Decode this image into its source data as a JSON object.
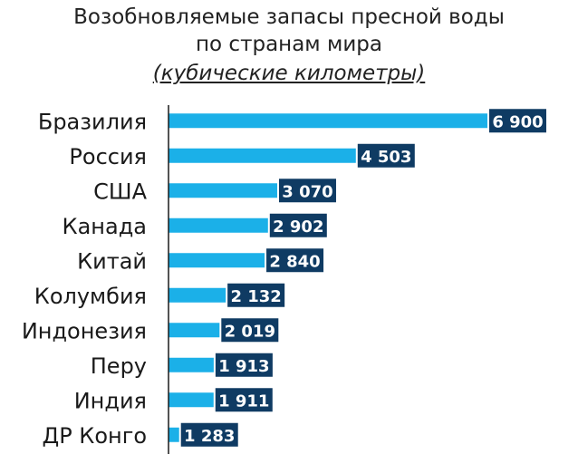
{
  "header": {
    "title_line1": "Возобновляемые запасы пресной воды",
    "title_line2": "по странам мира",
    "subtitle": "(кубические километры)"
  },
  "colors": {
    "bar": "#1bb0e8",
    "value_box": "#0f3b63",
    "axis": "#1a1a1a"
  },
  "chart_data": {
    "type": "bar",
    "orientation": "horizontal",
    "title": "Возобновляемые запасы пресной воды по странам мира",
    "subtitle": "(кубические километры)",
    "categories": [
      "Бразилия",
      "Россия",
      "США",
      "Канада",
      "Китай",
      "Колумбия",
      "Индонезия",
      "Перу",
      "Индия",
      "ДР Конго"
    ],
    "values": [
      6900,
      4503,
      3070,
      2902,
      2840,
      2132,
      2019,
      1913,
      1911,
      1283
    ],
    "value_labels": [
      "6 900",
      "4 503",
      "3 070",
      "2 902",
      "2 840",
      "2 132",
      "2 019",
      "1 913",
      "1 911",
      "1 283"
    ],
    "xlim": [
      0,
      6900
    ],
    "grid": false,
    "legend": "none"
  }
}
